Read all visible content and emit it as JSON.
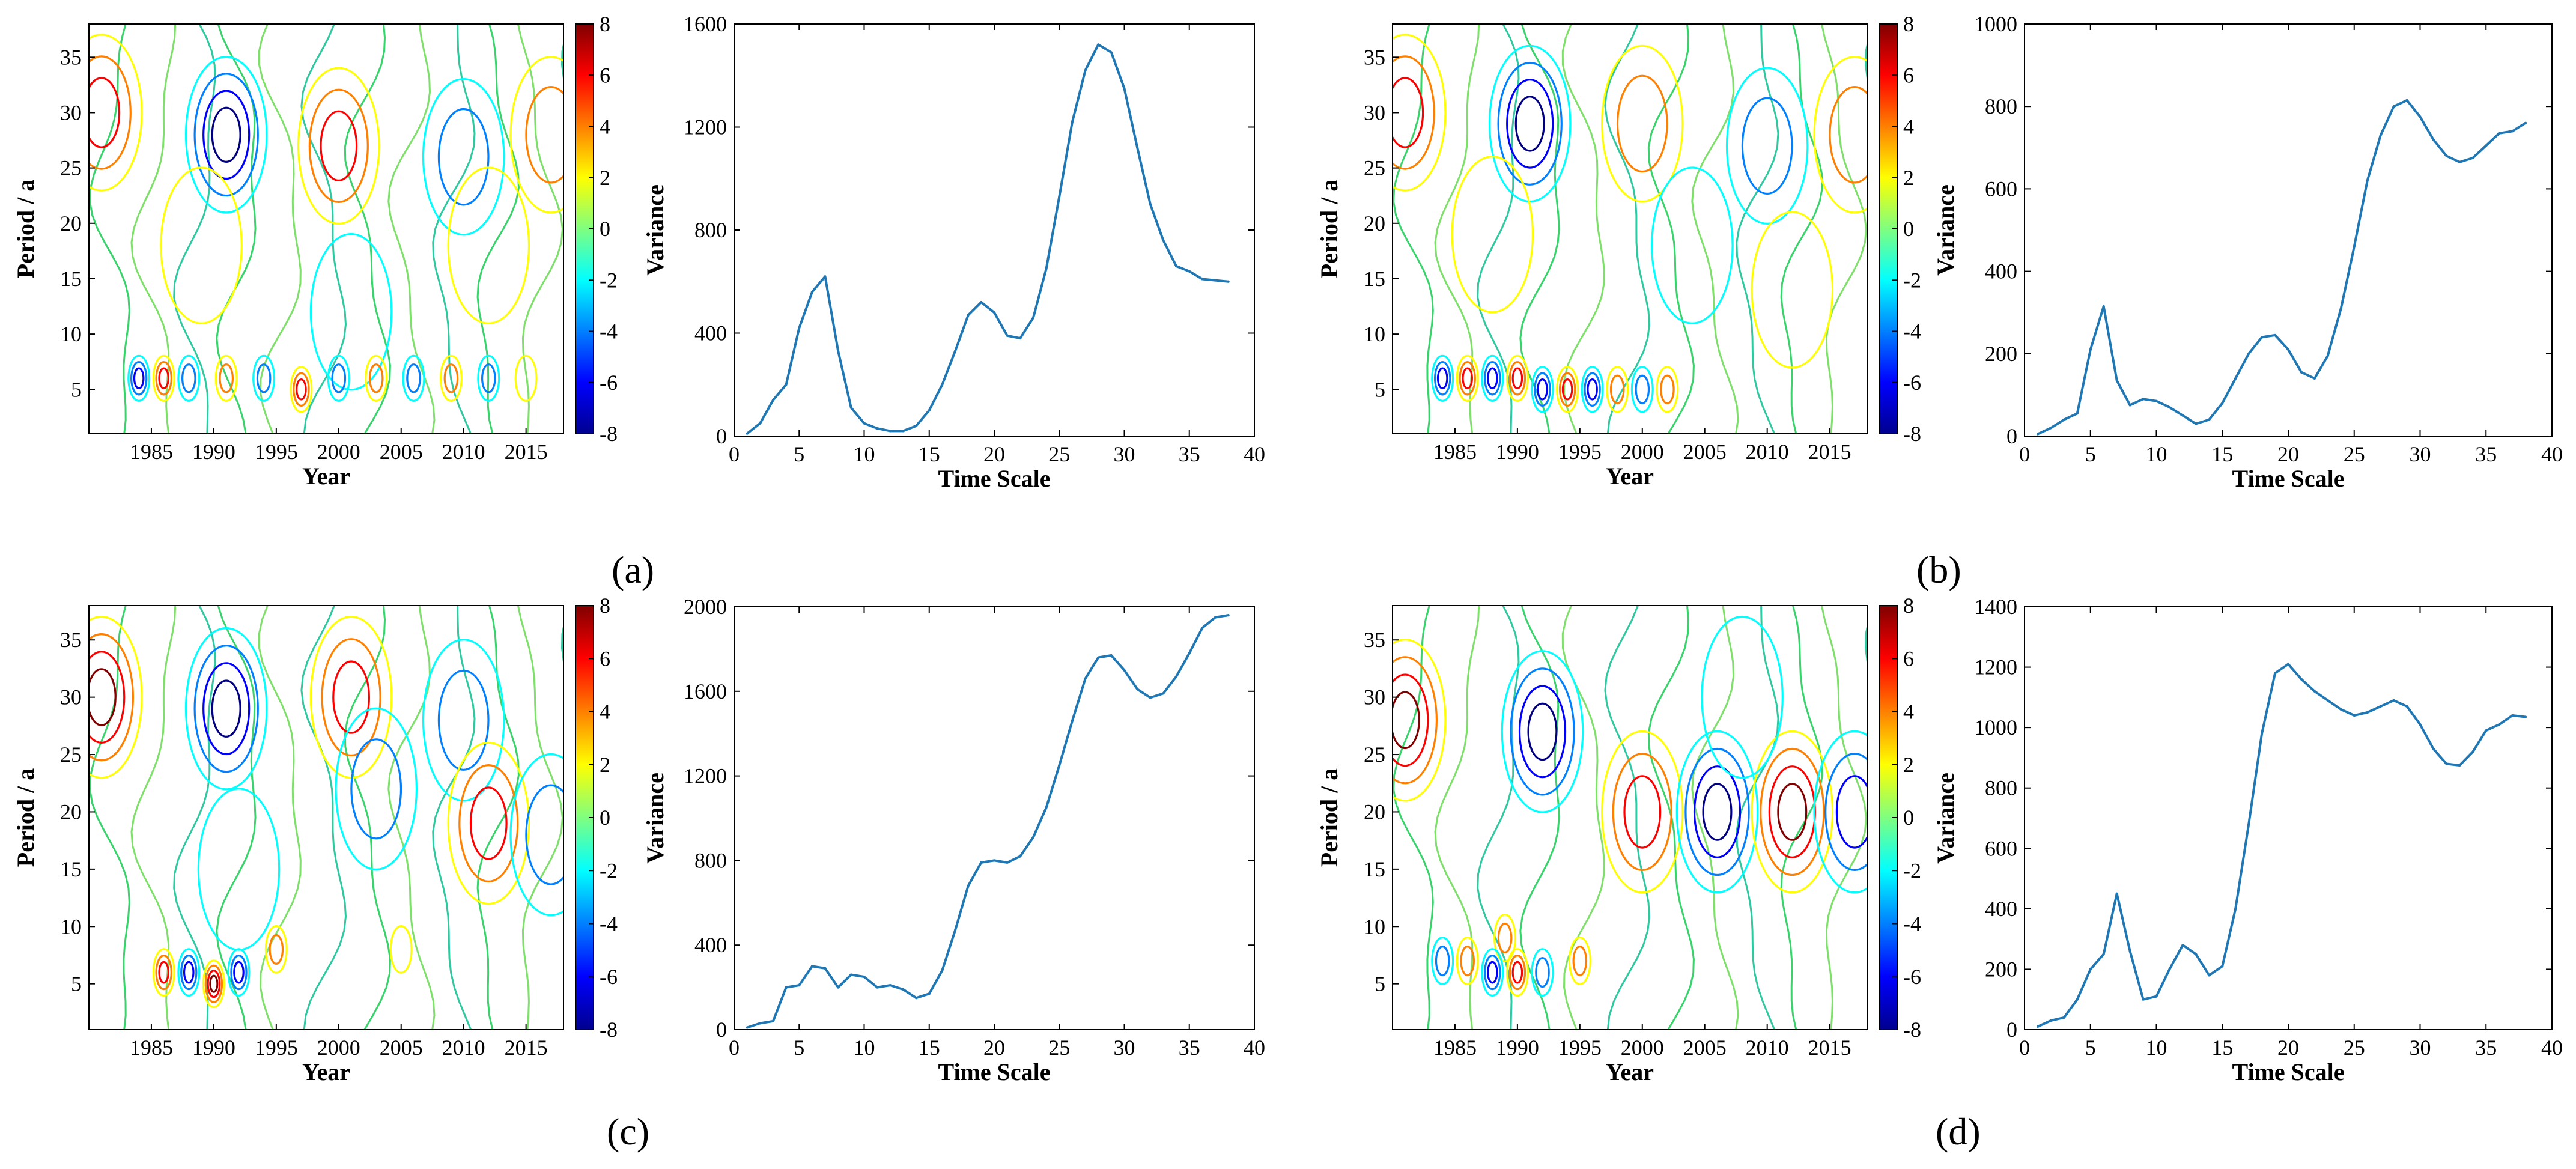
{
  "figure": {
    "labels": [
      "(a)",
      "(b)",
      "(c)",
      "(d)"
    ],
    "colors": {
      "line": "#1f77b4",
      "axis": "#000000",
      "background": "#ffffff"
    }
  },
  "chart_data": [
    {
      "id": "a-contour",
      "type": "heatmap",
      "xlabel": "Year",
      "ylabel": "Period / a",
      "xlim": [
        1980,
        2018
      ],
      "ylim": [
        1,
        38
      ],
      "x_ticks": [
        "1985",
        "1990",
        "1995",
        "2000",
        "2005",
        "2010",
        "2015"
      ],
      "y_ticks": [
        "5",
        "10",
        "15",
        "20",
        "25",
        "30",
        "35"
      ],
      "colorbar": {
        "min": -8,
        "max": 8,
        "ticks": [
          "8",
          "6",
          "4",
          "2",
          "0",
          "-2",
          "-4",
          "-6",
          "-8"
        ]
      },
      "features": [
        {
          "year": 1981,
          "period": 30,
          "value": 6
        },
        {
          "year": 1991,
          "period": 28,
          "value": -7
        },
        {
          "year": 2000,
          "period": 27,
          "value": 5
        },
        {
          "year": 2010,
          "period": 26,
          "value": -4
        },
        {
          "year": 1989,
          "period": 18,
          "value": 2
        },
        {
          "year": 2001,
          "period": 12,
          "value": -2
        },
        {
          "year": 2012,
          "period": 18,
          "value": 2
        },
        {
          "year": 2017,
          "period": 28,
          "value": 3
        },
        {
          "year": 1984,
          "period": 6,
          "value": -5
        },
        {
          "year": 1986,
          "period": 6,
          "value": 6
        },
        {
          "year": 1988,
          "period": 6,
          "value": -4
        },
        {
          "year": 1991,
          "period": 6,
          "value": 4
        },
        {
          "year": 1994,
          "period": 6,
          "value": -4
        },
        {
          "year": 1997,
          "period": 5,
          "value": 5
        },
        {
          "year": 2000,
          "period": 6,
          "value": -4
        },
        {
          "year": 2003,
          "period": 6,
          "value": 3
        },
        {
          "year": 2006,
          "period": 6,
          "value": -3
        },
        {
          "year": 2009,
          "period": 6,
          "value": 3
        },
        {
          "year": 2012,
          "period": 6,
          "value": -3
        },
        {
          "year": 2015,
          "period": 6,
          "value": 2
        }
      ]
    },
    {
      "id": "a-variance",
      "type": "line",
      "xlabel": "Time Scale",
      "ylabel": "Variance",
      "xlim": [
        0,
        40
      ],
      "ylim": [
        0,
        1600
      ],
      "x_ticks": [
        "0",
        "5",
        "10",
        "15",
        "20",
        "25",
        "30",
        "35",
        "40"
      ],
      "y_ticks": [
        "0",
        "400",
        "800",
        "1200",
        "1600"
      ],
      "series": [
        {
          "name": "Variance",
          "x": [
            1,
            2,
            3,
            4,
            5,
            6,
            7,
            8,
            9,
            10,
            11,
            12,
            13,
            14,
            15,
            16,
            17,
            18,
            19,
            20,
            21,
            22,
            23,
            24,
            25,
            26,
            27,
            28,
            29,
            30,
            31,
            32,
            33,
            34,
            35,
            36,
            37,
            38
          ],
          "y": [
            10,
            50,
            140,
            200,
            420,
            560,
            620,
            330,
            110,
            50,
            30,
            20,
            20,
            40,
            100,
            200,
            330,
            470,
            520,
            480,
            390,
            380,
            460,
            650,
            930,
            1220,
            1420,
            1520,
            1490,
            1350,
            1120,
            900,
            760,
            660,
            640,
            610,
            605,
            600
          ]
        }
      ]
    },
    {
      "id": "b-contour",
      "type": "heatmap",
      "xlabel": "Year",
      "ylabel": "Period / a",
      "xlim": [
        1980,
        2018
      ],
      "ylim": [
        1,
        38
      ],
      "x_ticks": [
        "1985",
        "1990",
        "1995",
        "2000",
        "2005",
        "2010",
        "2015"
      ],
      "y_ticks": [
        "5",
        "10",
        "15",
        "20",
        "25",
        "30",
        "35"
      ],
      "colorbar": {
        "min": -8,
        "max": 8,
        "ticks": [
          "8",
          "6",
          "4",
          "2",
          "0",
          "-2",
          "-4",
          "-6",
          "-8"
        ]
      },
      "features": [
        {
          "year": 1981,
          "period": 30,
          "value": 5
        },
        {
          "year": 1991,
          "period": 29,
          "value": -7
        },
        {
          "year": 2000,
          "period": 29,
          "value": 4
        },
        {
          "year": 2010,
          "period": 27,
          "value": -3
        },
        {
          "year": 2017,
          "period": 28,
          "value": 3
        },
        {
          "year": 1988,
          "period": 19,
          "value": 2
        },
        {
          "year": 2004,
          "period": 18,
          "value": -2
        },
        {
          "year": 2012,
          "period": 14,
          "value": 2
        },
        {
          "year": 1984,
          "period": 6,
          "value": -5
        },
        {
          "year": 1986,
          "period": 6,
          "value": 5
        },
        {
          "year": 1988,
          "period": 6,
          "value": -5
        },
        {
          "year": 1990,
          "period": 6,
          "value": 5
        },
        {
          "year": 1992,
          "period": 5,
          "value": -5
        },
        {
          "year": 1994,
          "period": 5,
          "value": 5
        },
        {
          "year": 1996,
          "period": 5,
          "value": -5
        },
        {
          "year": 1998,
          "period": 5,
          "value": 4
        },
        {
          "year": 2000,
          "period": 5,
          "value": -4
        },
        {
          "year": 2002,
          "period": 5,
          "value": 3
        }
      ]
    },
    {
      "id": "b-variance",
      "type": "line",
      "xlabel": "Time Scale",
      "ylabel": "Variance",
      "xlim": [
        0,
        40
      ],
      "ylim": [
        0,
        1000
      ],
      "x_ticks": [
        "0",
        "5",
        "10",
        "15",
        "20",
        "25",
        "30",
        "35",
        "40"
      ],
      "y_ticks": [
        "0",
        "200",
        "400",
        "600",
        "800",
        "1000"
      ],
      "series": [
        {
          "name": "Variance",
          "x": [
            1,
            2,
            3,
            4,
            5,
            6,
            7,
            8,
            9,
            10,
            11,
            12,
            13,
            14,
            15,
            16,
            17,
            18,
            19,
            20,
            21,
            22,
            23,
            24,
            25,
            26,
            27,
            28,
            29,
            30,
            31,
            32,
            33,
            34,
            35,
            36,
            37,
            38
          ],
          "y": [
            5,
            20,
            40,
            55,
            210,
            315,
            135,
            75,
            90,
            85,
            70,
            50,
            30,
            40,
            80,
            140,
            200,
            240,
            245,
            210,
            155,
            140,
            195,
            310,
            460,
            620,
            730,
            800,
            815,
            775,
            720,
            680,
            665,
            675,
            705,
            735,
            740,
            760
          ]
        }
      ]
    },
    {
      "id": "c-contour",
      "type": "heatmap",
      "xlabel": "Year",
      "ylabel": "Period / a",
      "xlim": [
        1980,
        2018
      ],
      "ylim": [
        1,
        38
      ],
      "x_ticks": [
        "1985",
        "1990",
        "1995",
        "2000",
        "2005",
        "2010",
        "2015"
      ],
      "y_ticks": [
        "5",
        "10",
        "15",
        "20",
        "25",
        "30",
        "35"
      ],
      "colorbar": {
        "min": -8,
        "max": 8,
        "ticks": [
          "8",
          "6",
          "4",
          "2",
          "0",
          "-2",
          "-4",
          "-6",
          "-8"
        ]
      },
      "features": [
        {
          "year": 1981,
          "period": 30,
          "value": 7
        },
        {
          "year": 1991,
          "period": 29,
          "value": -8
        },
        {
          "year": 2001,
          "period": 30,
          "value": 6
        },
        {
          "year": 2010,
          "period": 28,
          "value": -4
        },
        {
          "year": 2003,
          "period": 22,
          "value": -3
        },
        {
          "year": 2012,
          "period": 19,
          "value": 5
        },
        {
          "year": 2017,
          "period": 18,
          "value": -3
        },
        {
          "year": 1992,
          "period": 15,
          "value": -2
        },
        {
          "year": 1986,
          "period": 6,
          "value": 5
        },
        {
          "year": 1988,
          "period": 6,
          "value": -5
        },
        {
          "year": 1990,
          "period": 5,
          "value": 7
        },
        {
          "year": 1992,
          "period": 6,
          "value": -5
        },
        {
          "year": 1995,
          "period": 8,
          "value": 3
        },
        {
          "year": 2005,
          "period": 8,
          "value": 2
        }
      ]
    },
    {
      "id": "c-variance",
      "type": "line",
      "xlabel": "Time Scale",
      "ylabel": "Variance",
      "xlim": [
        0,
        40
      ],
      "ylim": [
        0,
        2000
      ],
      "x_ticks": [
        "0",
        "5",
        "10",
        "15",
        "20",
        "25",
        "30",
        "35",
        "40"
      ],
      "y_ticks": [
        "0",
        "400",
        "800",
        "1200",
        "1600",
        "2000"
      ],
      "series": [
        {
          "name": "Variance",
          "x": [
            1,
            2,
            3,
            4,
            5,
            6,
            7,
            8,
            9,
            10,
            11,
            12,
            13,
            14,
            15,
            16,
            17,
            18,
            19,
            20,
            21,
            22,
            23,
            24,
            25,
            26,
            27,
            28,
            29,
            30,
            31,
            32,
            33,
            34,
            35,
            36,
            37,
            38
          ],
          "y": [
            10,
            30,
            40,
            200,
            210,
            300,
            290,
            200,
            260,
            250,
            200,
            210,
            190,
            150,
            170,
            280,
            470,
            680,
            790,
            800,
            790,
            820,
            910,
            1050,
            1250,
            1460,
            1660,
            1760,
            1770,
            1700,
            1610,
            1570,
            1590,
            1670,
            1780,
            1900,
            1950,
            1960
          ]
        }
      ]
    },
    {
      "id": "d-contour",
      "type": "heatmap",
      "xlabel": "Year",
      "ylabel": "Period / a",
      "xlim": [
        1980,
        2018
      ],
      "ylim": [
        1,
        38
      ],
      "x_ticks": [
        "1985",
        "1990",
        "1995",
        "2000",
        "2005",
        "2010",
        "2015"
      ],
      "y_ticks": [
        "5",
        "10",
        "15",
        "20",
        "25",
        "30",
        "35"
      ],
      "colorbar": {
        "min": -8,
        "max": 8,
        "ticks": [
          "8",
          "6",
          "4",
          "2",
          "0",
          "-2",
          "-4",
          "-6",
          "-8"
        ]
      },
      "features": [
        {
          "year": 1981,
          "period": 28,
          "value": 7
        },
        {
          "year": 1992,
          "period": 27,
          "value": -7
        },
        {
          "year": 2000,
          "period": 20,
          "value": 6
        },
        {
          "year": 2006,
          "period": 20,
          "value": -7
        },
        {
          "year": 2012,
          "period": 20,
          "value": 7
        },
        {
          "year": 2017,
          "period": 20,
          "value": -6
        },
        {
          "year": 2008,
          "period": 30,
          "value": -2
        },
        {
          "year": 1989,
          "period": 9,
          "value": 3
        },
        {
          "year": 1984,
          "period": 7,
          "value": -4
        },
        {
          "year": 1986,
          "period": 7,
          "value": 4
        },
        {
          "year": 1988,
          "period": 6,
          "value": -5
        },
        {
          "year": 1990,
          "period": 6,
          "value": 6
        },
        {
          "year": 1992,
          "period": 6,
          "value": -4
        },
        {
          "year": 1995,
          "period": 7,
          "value": 3
        }
      ]
    },
    {
      "id": "d-variance",
      "type": "line",
      "xlabel": "Time Scale",
      "ylabel": "Variance",
      "xlim": [
        0,
        40
      ],
      "ylim": [
        0,
        1400
      ],
      "x_ticks": [
        "0",
        "5",
        "10",
        "15",
        "20",
        "25",
        "30",
        "35",
        "40"
      ],
      "y_ticks": [
        "0",
        "200",
        "400",
        "600",
        "800",
        "1000",
        "1200",
        "1400"
      ],
      "series": [
        {
          "name": "Variance",
          "x": [
            1,
            2,
            3,
            4,
            5,
            6,
            7,
            8,
            9,
            10,
            11,
            12,
            13,
            14,
            15,
            16,
            17,
            18,
            19,
            20,
            21,
            22,
            23,
            24,
            25,
            26,
            27,
            28,
            29,
            30,
            31,
            32,
            33,
            34,
            35,
            36,
            37,
            38
          ],
          "y": [
            10,
            30,
            40,
            100,
            200,
            250,
            450,
            260,
            100,
            110,
            200,
            280,
            250,
            180,
            210,
            400,
            680,
            980,
            1180,
            1210,
            1160,
            1120,
            1090,
            1060,
            1040,
            1050,
            1070,
            1090,
            1070,
            1010,
            930,
            880,
            875,
            920,
            990,
            1010,
            1040,
            1035
          ]
        }
      ]
    }
  ]
}
